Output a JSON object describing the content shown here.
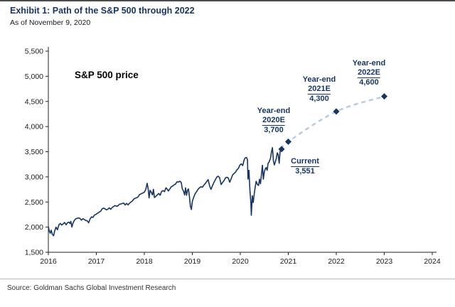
{
  "header": {
    "title": "Exhibit 1: Path of the S&P 500 through 2022",
    "subtitle": "As of November 9, 2020"
  },
  "footer": {
    "source": "Source: Goldman Sachs Global Investment Research"
  },
  "chart_data": {
    "type": "line",
    "title": "S&P 500 price",
    "xlabel": "",
    "ylabel": "",
    "xlim": [
      2016,
      2024
    ],
    "ylim": [
      1500,
      5500
    ],
    "y_tick_step": 500,
    "x_ticks": [
      2016,
      2017,
      2018,
      2019,
      2020,
      2021,
      2022,
      2023,
      2024
    ],
    "grid": false,
    "legend": "none",
    "colors": {
      "history_line": "#17355f",
      "projection_line": "#b6cce2",
      "marker": "#17355f",
      "annotation_text": "#17355f",
      "axis": "#222222"
    },
    "series": [
      {
        "name": "S&P 500 historical price",
        "style": "solid",
        "points": [
          [
            2016.0,
            2012
          ],
          [
            2016.02,
            1923
          ],
          [
            2016.04,
            1880
          ],
          [
            2016.06,
            1940
          ],
          [
            2016.08,
            1865
          ],
          [
            2016.11,
            1829
          ],
          [
            2016.13,
            1918
          ],
          [
            2016.16,
            1999
          ],
          [
            2016.19,
            1948
          ],
          [
            2016.22,
            2050
          ],
          [
            2016.25,
            2073
          ],
          [
            2016.28,
            2041
          ],
          [
            2016.31,
            2066
          ],
          [
            2016.34,
            2092
          ],
          [
            2016.37,
            2047
          ],
          [
            2016.4,
            2090
          ],
          [
            2016.43,
            2099
          ],
          [
            2016.45,
            2071
          ],
          [
            2016.47,
            2113
          ],
          [
            2016.49,
            2001
          ],
          [
            2016.51,
            2071
          ],
          [
            2016.54,
            2130
          ],
          [
            2016.57,
            2166
          ],
          [
            2016.6,
            2174
          ],
          [
            2016.63,
            2184
          ],
          [
            2016.66,
            2171
          ],
          [
            2016.69,
            2139
          ],
          [
            2016.72,
            2168
          ],
          [
            2016.75,
            2151
          ],
          [
            2016.78,
            2133
          ],
          [
            2016.81,
            2126
          ],
          [
            2016.84,
            2085
          ],
          [
            2016.87,
            2165
          ],
          [
            2016.9,
            2205
          ],
          [
            2016.93,
            2192
          ],
          [
            2016.96,
            2239
          ],
          [
            2017.0,
            2257
          ],
          [
            2017.03,
            2280
          ],
          [
            2017.06,
            2298
          ],
          [
            2017.09,
            2316
          ],
          [
            2017.12,
            2364
          ],
          [
            2017.15,
            2378
          ],
          [
            2017.18,
            2363
          ],
          [
            2017.21,
            2344
          ],
          [
            2017.24,
            2356
          ],
          [
            2017.27,
            2384
          ],
          [
            2017.3,
            2357
          ],
          [
            2017.33,
            2391
          ],
          [
            2017.36,
            2412
          ],
          [
            2017.39,
            2430
          ],
          [
            2017.42,
            2415
          ],
          [
            2017.45,
            2423
          ],
          [
            2017.48,
            2454
          ],
          [
            2017.51,
            2460
          ],
          [
            2017.54,
            2470
          ],
          [
            2017.57,
            2478
          ],
          [
            2017.6,
            2441
          ],
          [
            2017.63,
            2472
          ],
          [
            2017.66,
            2443
          ],
          [
            2017.69,
            2475
          ],
          [
            2017.72,
            2498
          ],
          [
            2017.75,
            2519
          ],
          [
            2017.78,
            2557
          ],
          [
            2017.81,
            2575
          ],
          [
            2017.84,
            2584
          ],
          [
            2017.87,
            2602
          ],
          [
            2017.9,
            2648
          ],
          [
            2017.93,
            2662
          ],
          [
            2017.96,
            2674
          ],
          [
            2018.0,
            2696
          ],
          [
            2018.03,
            2748
          ],
          [
            2018.06,
            2873
          ],
          [
            2018.08,
            2762
          ],
          [
            2018.1,
            2581
          ],
          [
            2018.12,
            2732
          ],
          [
            2018.14,
            2701
          ],
          [
            2018.17,
            2641
          ],
          [
            2018.19,
            2752
          ],
          [
            2018.21,
            2588
          ],
          [
            2018.24,
            2613
          ],
          [
            2018.27,
            2641
          ],
          [
            2018.3,
            2670
          ],
          [
            2018.33,
            2635
          ],
          [
            2018.36,
            2712
          ],
          [
            2018.39,
            2727
          ],
          [
            2018.42,
            2705
          ],
          [
            2018.45,
            2782
          ],
          [
            2018.48,
            2754
          ],
          [
            2018.5,
            2718
          ],
          [
            2018.53,
            2759
          ],
          [
            2018.56,
            2802
          ],
          [
            2018.59,
            2816
          ],
          [
            2018.62,
            2840
          ],
          [
            2018.65,
            2857
          ],
          [
            2018.68,
            2902
          ],
          [
            2018.71,
            2897
          ],
          [
            2018.74,
            2914
          ],
          [
            2018.77,
            2886
          ],
          [
            2018.79,
            2768
          ],
          [
            2018.82,
            2712
          ],
          [
            2018.84,
            2641
          ],
          [
            2018.86,
            2782
          ],
          [
            2018.88,
            2633
          ],
          [
            2018.9,
            2737
          ],
          [
            2018.92,
            2760
          ],
          [
            2018.94,
            2600
          ],
          [
            2018.96,
            2416
          ],
          [
            2018.98,
            2351
          ],
          [
            2019.0,
            2510
          ],
          [
            2019.03,
            2596
          ],
          [
            2019.06,
            2664
          ],
          [
            2019.09,
            2707
          ],
          [
            2019.12,
            2754
          ],
          [
            2019.15,
            2784
          ],
          [
            2019.18,
            2803
          ],
          [
            2019.21,
            2793
          ],
          [
            2019.24,
            2834
          ],
          [
            2019.27,
            2867
          ],
          [
            2019.3,
            2907
          ],
          [
            2019.33,
            2946
          ],
          [
            2019.36,
            2822
          ],
          [
            2019.39,
            2752
          ],
          [
            2019.42,
            2826
          ],
          [
            2019.45,
            2890
          ],
          [
            2019.48,
            2942
          ],
          [
            2019.51,
            2996
          ],
          [
            2019.54,
            3014
          ],
          [
            2019.57,
            2980
          ],
          [
            2019.6,
            2847
          ],
          [
            2019.63,
            2888
          ],
          [
            2019.66,
            2926
          ],
          [
            2019.69,
            2979
          ],
          [
            2019.72,
            2992
          ],
          [
            2019.75,
            2977
          ],
          [
            2019.78,
            2893
          ],
          [
            2019.81,
            2966
          ],
          [
            2019.84,
            3038
          ],
          [
            2019.87,
            3067
          ],
          [
            2019.9,
            3094
          ],
          [
            2019.93,
            3141
          ],
          [
            2019.96,
            3169
          ],
          [
            2019.99,
            3231
          ],
          [
            2020.02,
            3258
          ],
          [
            2020.05,
            3226
          ],
          [
            2020.08,
            3338
          ],
          [
            2020.1,
            3374
          ],
          [
            2020.13,
            3386
          ],
          [
            2020.15,
            3338
          ],
          [
            2020.16,
            2954
          ],
          [
            2020.18,
            3130
          ],
          [
            2020.2,
            2741
          ],
          [
            2020.22,
            2481
          ],
          [
            2020.23,
            2237
          ],
          [
            2020.25,
            2626
          ],
          [
            2020.27,
            2489
          ],
          [
            2020.29,
            2663
          ],
          [
            2020.31,
            2790
          ],
          [
            2020.33,
            2912
          ],
          [
            2020.36,
            2842
          ],
          [
            2020.38,
            2830
          ],
          [
            2020.4,
            2953
          ],
          [
            2020.42,
            2863
          ],
          [
            2020.44,
            3044
          ],
          [
            2020.46,
            3232
          ],
          [
            2020.48,
            2955
          ],
          [
            2020.5,
            3100
          ],
          [
            2020.52,
            3155
          ],
          [
            2020.54,
            3185
          ],
          [
            2020.56,
            3130
          ],
          [
            2020.58,
            3271
          ],
          [
            2020.6,
            3295
          ],
          [
            2020.63,
            3373
          ],
          [
            2020.65,
            3500
          ],
          [
            2020.67,
            3580
          ],
          [
            2020.69,
            3319
          ],
          [
            2020.71,
            3237
          ],
          [
            2020.73,
            3298
          ],
          [
            2020.75,
            3363
          ],
          [
            2020.77,
            3477
          ],
          [
            2020.79,
            3443
          ],
          [
            2020.81,
            3270
          ],
          [
            2020.83,
            3510
          ],
          [
            2020.86,
            3551
          ]
        ]
      },
      {
        "name": "Goldman Sachs forecast path",
        "style": "dashed",
        "points": [
          [
            2020.86,
            3551
          ],
          [
            2021.0,
            3700
          ],
          [
            2022.0,
            4300
          ],
          [
            2023.0,
            4600
          ]
        ]
      }
    ],
    "markers": [
      {
        "label": "Current",
        "x": 2020.86,
        "y": 3551
      },
      {
        "label": "Year-end 2020E",
        "x": 2021.0,
        "y": 3700
      },
      {
        "label": "Year-end 2021E",
        "x": 2022.0,
        "y": 4300
      },
      {
        "label": "Year-end 2022E",
        "x": 2023.0,
        "y": 4600
      }
    ],
    "annotations": [
      {
        "lines": [
          "Year-end",
          "2020E",
          "3,700"
        ],
        "underline_line": 1
      },
      {
        "lines": [
          "Year-end",
          "2021E",
          "4,300"
        ],
        "underline_line": 1
      },
      {
        "lines": [
          "Year-end",
          "2022E",
          "4,600"
        ],
        "underline_line": 1
      },
      {
        "lines": [
          "Current",
          "3,551"
        ],
        "underline_line": 0
      }
    ]
  }
}
